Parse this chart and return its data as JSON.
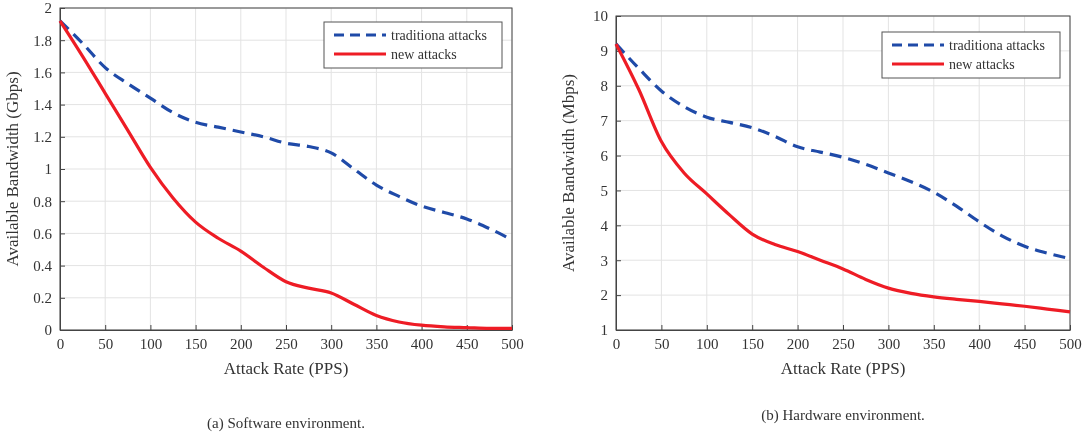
{
  "chart_data": [
    {
      "type": "line",
      "title": "(a) Software environment.",
      "xlabel": "Attack Rate (PPS)",
      "ylabel": "Available Bandwidth (Gbps)",
      "x": [
        0,
        25,
        50,
        75,
        100,
        125,
        150,
        175,
        200,
        225,
        250,
        275,
        300,
        325,
        350,
        375,
        400,
        425,
        450,
        475,
        500
      ],
      "series": [
        {
          "name": "traditiona attacks",
          "color": "#1f4aa8",
          "line_style": "dashed",
          "values": [
            1.92,
            1.78,
            1.63,
            1.53,
            1.44,
            1.35,
            1.29,
            1.26,
            1.23,
            1.2,
            1.16,
            1.14,
            1.1,
            1.0,
            0.9,
            0.83,
            0.77,
            0.73,
            0.69,
            0.63,
            0.56
          ]
        },
        {
          "name": "new attacks",
          "color": "#ee1c25",
          "line_style": "solid",
          "values": [
            1.92,
            1.7,
            1.47,
            1.24,
            1.01,
            0.82,
            0.67,
            0.57,
            0.49,
            0.39,
            0.3,
            0.26,
            0.23,
            0.16,
            0.09,
            0.05,
            0.03,
            0.02,
            0.015,
            0.01,
            0.01
          ]
        }
      ],
      "xlim": [
        0,
        500
      ],
      "xticks": [
        0,
        50,
        100,
        150,
        200,
        250,
        300,
        350,
        400,
        450,
        500
      ],
      "ylim": [
        0,
        2
      ],
      "yticks": [
        0,
        0.2,
        0.4,
        0.6,
        0.8,
        1,
        1.2,
        1.4,
        1.6,
        1.8,
        2
      ],
      "grid": true,
      "legend": "top right",
      "marker": "none"
    },
    {
      "type": "line",
      "title": "(b) Hardware environment.",
      "xlabel": "Attack Rate (PPS)",
      "ylabel": "Available Bandwidth (Mbps)",
      "x": [
        0,
        25,
        50,
        75,
        100,
        125,
        150,
        175,
        200,
        225,
        250,
        275,
        300,
        325,
        350,
        375,
        400,
        425,
        450,
        475,
        500
      ],
      "series": [
        {
          "name": "traditiona attacks",
          "color": "#1f4aa8",
          "line_style": "dashed",
          "values": [
            9.2,
            8.5,
            7.85,
            7.4,
            7.1,
            6.95,
            6.8,
            6.55,
            6.25,
            6.1,
            5.95,
            5.75,
            5.5,
            5.25,
            4.95,
            4.55,
            4.1,
            3.7,
            3.4,
            3.2,
            3.05
          ]
        },
        {
          "name": "new attacks",
          "color": "#ee1c25",
          "line_style": "solid",
          "values": [
            9.2,
            7.9,
            6.4,
            5.5,
            4.9,
            4.3,
            3.75,
            3.45,
            3.25,
            3.0,
            2.75,
            2.45,
            2.2,
            2.05,
            1.95,
            1.88,
            1.82,
            1.75,
            1.68,
            1.6,
            1.52
          ]
        }
      ],
      "xlim": [
        0,
        500
      ],
      "xticks": [
        0,
        50,
        100,
        150,
        200,
        250,
        300,
        350,
        400,
        450,
        500
      ],
      "ylim": [
        1,
        10
      ],
      "yticks": [
        1,
        2,
        3,
        4,
        5,
        6,
        7,
        8,
        9,
        10
      ],
      "grid": true,
      "legend": "top right",
      "marker": "none"
    }
  ]
}
